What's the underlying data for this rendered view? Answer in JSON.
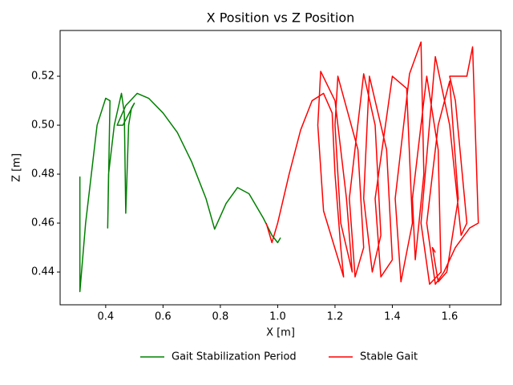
{
  "chart_data": {
    "type": "line",
    "title": "X Position vs Z Position",
    "x_label": "X [m]",
    "y_label": "Z [m]",
    "xlim": [
      0.241,
      1.779
    ],
    "ylim": [
      0.4266,
      0.5387
    ],
    "xticks": [
      0.4,
      0.6,
      0.8,
      {
        "value": 1,
        "label": "1.0"
      },
      1.2,
      1.4,
      1.6
    ],
    "yticks": [
      0.44,
      0.46,
      0.48,
      {
        "value": 0.5,
        "label": "0.50"
      },
      0.52
    ],
    "grid": false,
    "legend": "bottom",
    "series": [
      {
        "name": "Gait Stabilization Period",
        "color": "#008000",
        "x": [
          0.31,
          0.31,
          0.33,
          0.37,
          0.4,
          0.415,
          0.407,
          0.41,
          0.43,
          0.455,
          0.465,
          0.47,
          0.48,
          0.49,
          0.5,
          0.46,
          0.44,
          0.47,
          0.51,
          0.55,
          0.6,
          0.65,
          0.7,
          0.75,
          0.78,
          0.82,
          0.86,
          0.9,
          0.95,
          0.98,
          1.0,
          1.01
        ],
        "values": [
          0.479,
          0.432,
          0.46,
          0.5,
          0.511,
          0.51,
          0.458,
          0.48,
          0.5,
          0.513,
          0.505,
          0.464,
          0.5,
          0.507,
          0.509,
          0.5,
          0.5,
          0.508,
          0.513,
          0.511,
          0.505,
          0.497,
          0.485,
          0.47,
          0.4575,
          0.468,
          0.4745,
          0.472,
          0.462,
          0.455,
          0.452,
          0.454
        ]
      },
      {
        "name": "Stable Gait",
        "color": "#ff0000",
        "x": [
          0.96,
          0.98,
          1.0,
          1.04,
          1.08,
          1.12,
          1.16,
          1.19,
          1.2,
          1.22,
          1.23,
          1.16,
          1.14,
          1.15,
          1.2,
          1.24,
          1.26,
          1.22,
          1.2,
          1.21,
          1.28,
          1.3,
          1.27,
          1.25,
          1.3,
          1.34,
          1.36,
          1.33,
          1.3,
          1.32,
          1.38,
          1.4,
          1.36,
          1.34,
          1.4,
          1.45,
          1.47,
          1.43,
          1.41,
          1.46,
          1.5,
          1.51,
          1.48,
          1.47,
          1.52,
          1.56,
          1.57,
          1.53,
          1.5,
          1.55,
          1.6,
          1.64,
          1.66,
          1.62,
          1.6,
          1.66,
          1.68,
          1.7,
          1.67,
          1.62,
          1.58,
          1.55,
          1.52,
          1.56,
          1.6,
          1.63,
          1.59,
          1.56,
          1.54,
          1.55
        ],
        "values": [
          0.46,
          0.452,
          0.46,
          0.48,
          0.498,
          0.51,
          0.513,
          0.505,
          0.48,
          0.45,
          0.438,
          0.465,
          0.5,
          0.522,
          0.51,
          0.47,
          0.44,
          0.46,
          0.5,
          0.52,
          0.49,
          0.45,
          0.438,
          0.47,
          0.521,
          0.5,
          0.455,
          0.44,
          0.47,
          0.52,
          0.49,
          0.445,
          0.438,
          0.47,
          0.52,
          0.515,
          0.46,
          0.436,
          0.47,
          0.521,
          0.534,
          0.48,
          0.445,
          0.47,
          0.52,
          0.49,
          0.44,
          0.435,
          0.46,
          0.528,
          0.5,
          0.455,
          0.46,
          0.51,
          0.52,
          0.52,
          0.532,
          0.46,
          0.458,
          0.45,
          0.44,
          0.435,
          0.46,
          0.5,
          0.518,
          0.47,
          0.44,
          0.436,
          0.45,
          0.448
        ]
      }
    ]
  }
}
